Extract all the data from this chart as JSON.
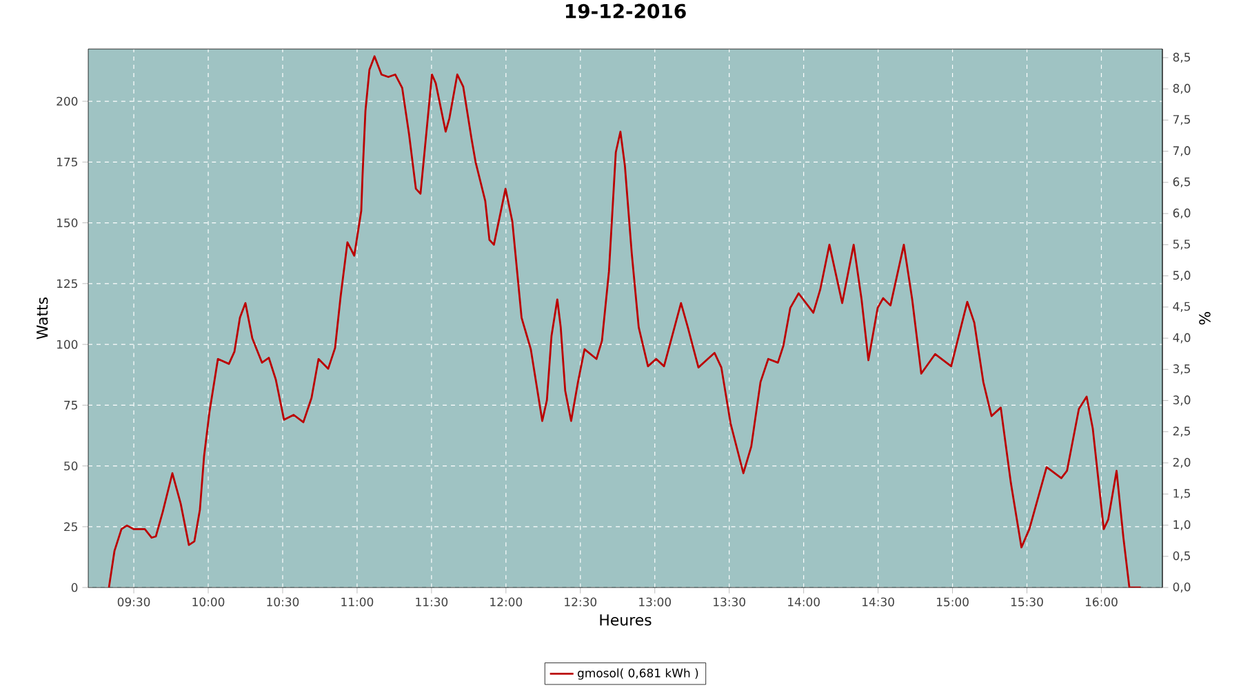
{
  "chart_data": {
    "type": "line",
    "title": "19-12-2016",
    "xlabel": "Heures",
    "ylabel": "Watts",
    "y2label": "%",
    "x": [
      9.333,
      9.37,
      9.417,
      9.454,
      9.5,
      9.574,
      9.62,
      9.648,
      9.694,
      9.759,
      9.815,
      9.87,
      9.907,
      9.944,
      9.972,
      10.009,
      10.065,
      10.139,
      10.176,
      10.213,
      10.25,
      10.296,
      10.361,
      10.407,
      10.454,
      10.509,
      10.574,
      10.639,
      10.694,
      10.741,
      10.806,
      10.852,
      10.889,
      10.935,
      10.981,
      11.028,
      11.037,
      11.056,
      11.083,
      11.117,
      11.164,
      11.21,
      11.256,
      11.303,
      11.349,
      11.395,
      11.426,
      11.456,
      11.503,
      11.528,
      11.595,
      11.62,
      11.673,
      11.713,
      11.769,
      11.796,
      11.861,
      11.889,
      11.919,
      11.997,
      12.043,
      12.105,
      12.167,
      12.244,
      12.275,
      12.306,
      12.345,
      12.368,
      12.398,
      12.438,
      12.484,
      12.528,
      12.608,
      12.645,
      12.692,
      12.738,
      12.769,
      12.799,
      12.845,
      12.892,
      12.954,
      13.009,
      13.062,
      13.108,
      13.176,
      13.222,
      13.293,
      13.401,
      13.447,
      13.509,
      13.595,
      13.648,
      13.71,
      13.762,
      13.827,
      13.864,
      13.91,
      13.966,
      14.065,
      14.111,
      14.173,
      14.259,
      14.336,
      14.389,
      14.435,
      14.497,
      14.534,
      14.583,
      14.673,
      14.729,
      14.79,
      14.883,
      14.991,
      15.099,
      15.146,
      15.207,
      15.262,
      15.324,
      15.392,
      15.463,
      15.516,
      15.632,
      15.731,
      15.769,
      15.849,
      15.901,
      15.942,
      16.016,
      16.046,
      16.102,
      16.148,
      16.188,
      16.265
    ],
    "series": [
      {
        "name": "gmosol( 0,681 kWh )",
        "color": "#bb0000",
        "values": [
          0,
          15,
          24,
          25.5,
          24,
          24,
          20.5,
          21,
          31,
          47,
          34.5,
          17.5,
          19,
          32,
          54,
          72.5,
          94,
          92,
          97,
          111,
          117,
          102.5,
          92.5,
          94.5,
          85.5,
          69,
          71,
          68,
          78,
          94,
          90,
          98.5,
          119.5,
          142,
          136.5,
          155,
          170,
          196,
          213,
          218.5,
          211,
          210,
          211,
          205.5,
          186.5,
          164,
          162,
          181,
          211,
          207.5,
          187.5,
          193,
          211,
          206,
          184.5,
          175,
          159,
          143,
          141,
          164,
          150.5,
          111,
          98,
          68.5,
          77,
          103.5,
          118.5,
          107,
          81,
          68.5,
          84.5,
          98,
          94,
          101.5,
          130,
          179,
          187.5,
          173.5,
          137.5,
          107,
          91,
          94,
          91,
          101.5,
          117,
          107,
          90.5,
          96.5,
          90.5,
          67.5,
          47,
          58,
          84.5,
          94,
          92.5,
          99.5,
          115,
          121,
          113,
          122.5,
          141,
          117,
          141,
          118.5,
          93.5,
          115,
          119,
          116,
          141,
          118.5,
          88,
          96,
          91,
          117.5,
          109,
          84.5,
          70.5,
          74,
          43,
          16.5,
          24,
          49.5,
          45,
          48,
          73.5,
          78.5,
          65.5,
          24,
          28,
          48,
          20.5,
          0,
          0
        ]
      }
    ],
    "xlim": [
      9.194,
      16.41
    ],
    "xticks": [
      {
        "value": 9.5,
        "label": "09:30"
      },
      {
        "value": 10,
        "label": "10:00"
      },
      {
        "value": 10.5,
        "label": "10:30"
      },
      {
        "value": 11,
        "label": "11:00"
      },
      {
        "value": 11.5,
        "label": "11:30"
      },
      {
        "value": 12,
        "label": "12:00"
      },
      {
        "value": 12.5,
        "label": "12:30"
      },
      {
        "value": 13,
        "label": "13:00"
      },
      {
        "value": 13.5,
        "label": "13:30"
      },
      {
        "value": 14,
        "label": "14:00"
      },
      {
        "value": 14.5,
        "label": "14:30"
      },
      {
        "value": 15,
        "label": "15:00"
      },
      {
        "value": 15.5,
        "label": "15:30"
      },
      {
        "value": 16,
        "label": "16:00"
      }
    ],
    "ylim": [
      0,
      221.5
    ],
    "yticks": [
      0,
      25,
      50,
      75,
      100,
      125,
      150,
      175,
      200
    ],
    "y2lim": [
      0,
      8.64
    ],
    "y2ticks": [
      {
        "value": 0,
        "label": "0,0"
      },
      {
        "value": 0.5,
        "label": "0,5"
      },
      {
        "value": 1,
        "label": "1,0"
      },
      {
        "value": 1.5,
        "label": "1,5"
      },
      {
        "value": 2,
        "label": "2,0"
      },
      {
        "value": 2.5,
        "label": "2,5"
      },
      {
        "value": 3,
        "label": "3,0"
      },
      {
        "value": 3.5,
        "label": "3,5"
      },
      {
        "value": 4,
        "label": "4,0"
      },
      {
        "value": 4.5,
        "label": "4,5"
      },
      {
        "value": 5,
        "label": "5,0"
      },
      {
        "value": 5.5,
        "label": "5,5"
      },
      {
        "value": 6,
        "label": "6,0"
      },
      {
        "value": 6.5,
        "label": "6,5"
      },
      {
        "value": 7,
        "label": "7,0"
      },
      {
        "value": 7.5,
        "label": "7,5"
      },
      {
        "value": 8,
        "label": "8,0"
      },
      {
        "value": 8.5,
        "label": "8,5"
      }
    ],
    "grid": true,
    "legend": "bottom",
    "marker": "none",
    "line_style": "solid"
  }
}
